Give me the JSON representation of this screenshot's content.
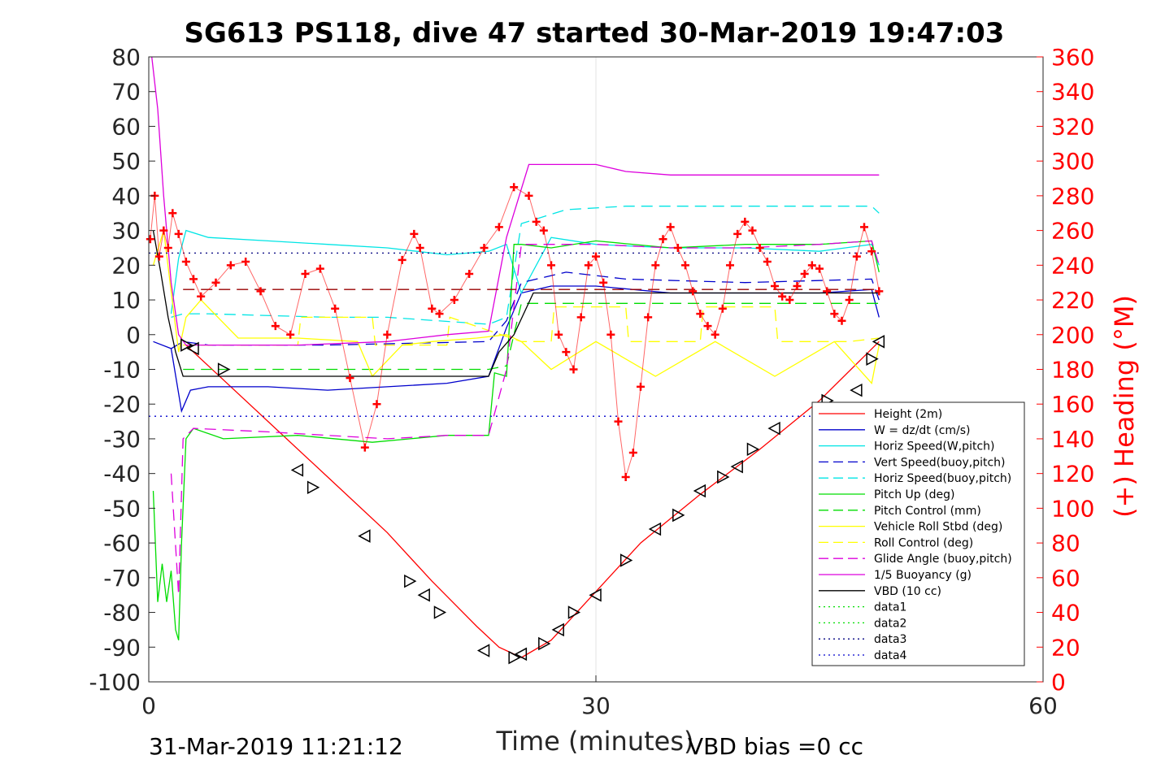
{
  "chart_data": {
    "type": "line",
    "title": "SG613 PS118, dive 47 started 30-Mar-2019 19:47:03",
    "xlabel": "Time (minutes)",
    "ylabel_right": "(+) Heading (°M)",
    "xlim": [
      0,
      60
    ],
    "ylim_left": [
      -100,
      80
    ],
    "ylim_right": [
      0,
      360
    ],
    "x_ticks": [
      "0",
      "30",
      "60"
    ],
    "y_left_ticks": [
      "80",
      "70",
      "60",
      "50",
      "40",
      "30",
      "20",
      "10",
      "0",
      "-10",
      "-20",
      "-30",
      "-40",
      "-50",
      "-60",
      "-70",
      "-80",
      "-90",
      "-100"
    ],
    "y_right_ticks": [
      "360",
      "340",
      "320",
      "300",
      "280",
      "260",
      "240",
      "220",
      "200",
      "180",
      "160",
      "140",
      "120",
      "100",
      "80",
      "60",
      "40",
      "20",
      "0"
    ],
    "footer_left": "31-Mar-2019 11:21:12",
    "footer_right": "VBD bias =0 cc",
    "grid": "x-only",
    "legend_position": "lower-right",
    "legend": [
      {
        "label": "Height (2m)",
        "color": "#ff0000",
        "dash": "solid"
      },
      {
        "label": "W = dz/dt (cm/s)",
        "color": "#0000cc",
        "dash": "solid"
      },
      {
        "label": "Horiz Speed(W,pitch)",
        "color": "#00e5e5",
        "dash": "solid"
      },
      {
        "label": "Vert Speed(buoy,pitch)",
        "color": "#0000cc",
        "dash": "dashed"
      },
      {
        "label": "Horiz Speed(buoy,pitch)",
        "color": "#00e5e5",
        "dash": "dashed"
      },
      {
        "label": "Pitch Up (deg)",
        "color": "#00dd00",
        "dash": "solid"
      },
      {
        "label": "Pitch Control (mm)",
        "color": "#00dd00",
        "dash": "dashed"
      },
      {
        "label": "Vehicle Roll Stbd (deg)",
        "color": "#ffff00",
        "dash": "solid"
      },
      {
        "label": "Roll Control (deg)",
        "color": "#ffff00",
        "dash": "dashed"
      },
      {
        "label": "Glide Angle (buoy,pitch)",
        "color": "#dd00dd",
        "dash": "dashed"
      },
      {
        "label": "1/5 Buoyancy (g)",
        "color": "#dd00dd",
        "dash": "solid"
      },
      {
        "label": "VBD (10 cc)",
        "color": "#000000",
        "dash": "solid"
      },
      {
        "label": "data1",
        "color": "#00dd00",
        "dash": "dotted"
      },
      {
        "label": "data2",
        "color": "#00dd00",
        "dash": "dotted"
      },
      {
        "label": "data3",
        "color": "#000080",
        "dash": "dotted"
      },
      {
        "label": "data4",
        "color": "#0000cc",
        "dash": "dotted"
      }
    ],
    "series": [
      {
        "name": "Height (2m)",
        "color": "#ff0000",
        "dash": "solid",
        "axis": "left",
        "x": [
          2.5,
          4,
          8,
          12,
          16,
          19,
          22,
          23.5,
          25,
          27,
          30,
          33,
          37,
          41,
          45,
          49
        ],
        "y": [
          -3,
          -9,
          -25,
          -41,
          -57,
          -71,
          -84,
          -90,
          -93,
          -88,
          -74,
          -60,
          -46,
          -33,
          -19,
          -2
        ]
      },
      {
        "name": "W = dz/dt (cm/s)",
        "color": "#0000cc",
        "dash": "solid",
        "axis": "left",
        "x": [
          0.3,
          1.5,
          2.2,
          2.8,
          4,
          8,
          12,
          16,
          20,
          22.8,
          24,
          25,
          27,
          30,
          35,
          40,
          45,
          48.5,
          49
        ],
        "y": [
          -2,
          -4,
          -22,
          -16,
          -15,
          -15,
          -16,
          -15,
          -14,
          -12,
          2,
          12,
          14,
          14,
          12,
          12,
          12,
          13,
          5
        ]
      },
      {
        "name": "Horiz Speed(W,pitch)",
        "color": "#00e5e5",
        "dash": "solid",
        "axis": "left",
        "x": [
          1.5,
          2,
          2.5,
          4,
          8,
          12,
          16,
          20,
          22.8,
          24,
          25,
          27,
          30,
          35,
          40,
          45,
          48.5,
          49
        ],
        "y": [
          6,
          22,
          30,
          28,
          27,
          26,
          25,
          23,
          24,
          26,
          12,
          28,
          26,
          25,
          25,
          24,
          26,
          20
        ]
      },
      {
        "name": "Vert Speed(buoy,pitch)",
        "color": "#0000cc",
        "dash": "dashed",
        "axis": "left",
        "x": [
          1.5,
          2.3,
          4,
          12,
          22.8,
          24,
          25,
          28,
          32,
          40,
          48.5,
          49
        ],
        "y": [
          -4,
          -2,
          -3,
          -3,
          -2,
          4,
          15,
          18,
          16,
          15,
          16,
          10
        ]
      },
      {
        "name": "Horiz Speed(buoy,pitch)",
        "color": "#00e5e5",
        "dash": "dashed",
        "axis": "left",
        "x": [
          1.5,
          2.3,
          4,
          12,
          16,
          22.8,
          24,
          25,
          28,
          32,
          40,
          48.5,
          49
        ],
        "y": [
          5,
          6,
          6,
          5,
          5,
          3,
          5,
          32,
          36,
          37,
          37,
          37,
          35
        ]
      },
      {
        "name": "Pitch Up (deg)",
        "color": "#00dd00",
        "dash": "solid",
        "axis": "left",
        "x": [
          0.3,
          0.6,
          0.9,
          1.2,
          1.5,
          1.8,
          2.0,
          2.2,
          2.5,
          3,
          5,
          10,
          15,
          20,
          22.8,
          23.2,
          24,
          24.5,
          25,
          27,
          30,
          35,
          40,
          45,
          48.5,
          49
        ],
        "y": [
          -45,
          -77,
          -66,
          -77,
          -68,
          -85,
          -88,
          -60,
          -30,
          -27,
          -30,
          -29,
          -31,
          -29,
          -29,
          -11,
          -12,
          26,
          26,
          25,
          27,
          25,
          26,
          26,
          27,
          18
        ]
      },
      {
        "name": "Pitch Control (mm)",
        "color": "#00dd00",
        "dash": "dashed",
        "axis": "left",
        "x": [
          2.3,
          3,
          22.8,
          24,
          25,
          49
        ],
        "y": [
          -10,
          -10,
          -10,
          -9,
          9,
          9
        ]
      },
      {
        "name": "Vehicle Roll Stbd (deg)",
        "color": "#ffff00",
        "dash": "solid",
        "axis": "left",
        "x": [
          0.3,
          1,
          2,
          2.5,
          3.5,
          6,
          10,
          14,
          15,
          17,
          19,
          22,
          24,
          25,
          27,
          30,
          34,
          38,
          42,
          46,
          48.5,
          49
        ],
        "y": [
          20,
          30,
          -5,
          5,
          10,
          -1,
          -1,
          -2,
          -12,
          -3,
          -2,
          -1,
          0,
          -2,
          -10,
          -2,
          -12,
          -2,
          -12,
          -2,
          -14,
          -3
        ]
      },
      {
        "name": "Roll Control (deg)",
        "color": "#ffff00",
        "dash": "dashed",
        "axis": "left",
        "x": [
          2.3,
          6,
          10,
          10.2,
          15,
          15.2,
          20,
          20.2,
          25,
          27,
          27.2,
          32,
          32.2,
          37,
          37.2,
          42,
          42.2,
          47,
          49
        ],
        "y": [
          -3,
          -3,
          -3,
          5,
          5,
          -3,
          -3,
          5,
          -2,
          -2,
          8,
          8,
          -2,
          -2,
          8,
          8,
          -2,
          -2,
          -1
        ]
      },
      {
        "name": "Glide Angle (buoy,pitch)",
        "color": "#dd00dd",
        "dash": "dashed",
        "axis": "left",
        "x": [
          1.5,
          2.0,
          2.3,
          3,
          8,
          12,
          16,
          20,
          22.8,
          24,
          25,
          27,
          30,
          35,
          40,
          45,
          48.5,
          49
        ],
        "y": [
          -40,
          -75,
          -30,
          -27,
          -28,
          -29,
          -30,
          -29,
          -29,
          -10,
          26,
          26,
          26,
          25,
          25,
          26,
          27,
          20
        ]
      },
      {
        "name": "1/5 Buoyancy (g)",
        "color": "#dd00dd",
        "dash": "solid",
        "axis": "left",
        "x": [
          0.2,
          0.6,
          1.0,
          1.5,
          2.0,
          2.5,
          4,
          10,
          16,
          20,
          22.8,
          24,
          25.5,
          27,
          30,
          32,
          35,
          40,
          45,
          49
        ],
        "y": [
          80,
          65,
          40,
          15,
          0,
          -3,
          -3,
          -3,
          -2,
          0,
          1,
          28,
          49,
          49,
          49,
          47,
          46,
          46,
          46,
          46
        ]
      },
      {
        "name": "VBD (10 cc)",
        "color": "#000000",
        "dash": "solid",
        "axis": "left",
        "x": [
          0.3,
          0.8,
          1.3,
          1.8,
          2.3,
          3,
          10,
          16,
          22.8,
          23.5,
          24.5,
          25.8,
          30,
          40,
          49
        ],
        "y": [
          30,
          18,
          5,
          -5,
          -12,
          -12,
          -12,
          -12,
          -12,
          -5,
          0,
          12,
          12,
          12,
          12
        ]
      },
      {
        "name": "data3",
        "color": "#000080",
        "dash": "dotted",
        "axis": "left",
        "x": [
          0,
          49
        ],
        "y": [
          23.5,
          23.5
        ]
      },
      {
        "name": "data4",
        "color": "#0000cc",
        "dash": "dotted",
        "axis": "left",
        "x": [
          0,
          49
        ],
        "y": [
          -23.5,
          -23.5
        ]
      },
      {
        "name": "Target Heading",
        "color": "#990000",
        "dash": "dashed",
        "axis": "right",
        "x": [
          2.3,
          49
        ],
        "y": [
          226,
          226
        ]
      },
      {
        "name": "Heading",
        "color": "#ff0000",
        "dash": "markers-plus",
        "axis": "right",
        "x": [
          0.1,
          0.4,
          0.7,
          1.0,
          1.3,
          1.6,
          2.0,
          2.5,
          3.0,
          3.5,
          4.5,
          5.5,
          6.5,
          7.5,
          8.5,
          9.5,
          10.5,
          11.5,
          12.5,
          13.5,
          14.5,
          15.3,
          16,
          17,
          17.8,
          18.2,
          19,
          19.5,
          20.5,
          21.5,
          22.5,
          23.5,
          24.5,
          25.5,
          26,
          26.5,
          27,
          27.5,
          28,
          28.5,
          29,
          29.5,
          30,
          30.5,
          31,
          31.5,
          32,
          32.5,
          33,
          33.5,
          34,
          34.5,
          35,
          35.5,
          36,
          36.5,
          37,
          37.5,
          38,
          38.5,
          39,
          39.5,
          40,
          40.5,
          41,
          41.5,
          42,
          42.5,
          43,
          43.5,
          44,
          44.5,
          45,
          45.5,
          46,
          46.5,
          47,
          47.5,
          48,
          48.5,
          49
        ],
        "y": [
          255,
          280,
          245,
          260,
          250,
          270,
          258,
          242,
          232,
          222,
          230,
          240,
          242,
          225,
          205,
          200,
          235,
          238,
          215,
          175,
          135,
          160,
          200,
          243,
          258,
          250,
          215,
          212,
          220,
          235,
          250,
          262,
          285,
          280,
          265,
          260,
          240,
          200,
          190,
          180,
          210,
          240,
          245,
          230,
          200,
          150,
          118,
          132,
          170,
          210,
          240,
          255,
          262,
          250,
          240,
          225,
          212,
          205,
          200,
          215,
          240,
          258,
          265,
          260,
          250,
          242,
          228,
          222,
          220,
          228,
          235,
          240,
          238,
          225,
          212,
          208,
          220,
          245,
          262,
          248,
          225
        ]
      },
      {
        "name": "Depth markers",
        "color": "#000000",
        "dash": "markers-triangle",
        "axis": "left",
        "x": [
          2.5,
          3.0,
          5,
          10,
          11,
          14.5,
          17.5,
          18.5,
          19.5,
          22.5,
          24.5,
          25,
          26.5,
          27.5,
          28.5,
          30,
          32,
          34,
          35.5,
          37,
          38.5,
          39.5,
          40.5,
          42,
          45.5,
          47.5,
          48.5,
          49
        ],
        "y": [
          -3,
          -4,
          -10,
          -39,
          -44,
          -58,
          -71,
          -75,
          -80,
          -91,
          -93,
          -92,
          -89,
          -85,
          -80,
          -75,
          -65,
          -56,
          -52,
          -45,
          -41,
          -38,
          -33,
          -27,
          -19,
          -16,
          -7,
          -2
        ]
      }
    ]
  }
}
